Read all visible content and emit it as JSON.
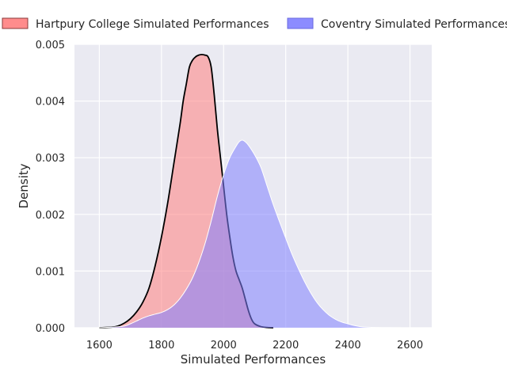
{
  "chart_data": {
    "type": "area",
    "title": "",
    "xlabel": "Simulated Performances",
    "ylabel": "Density",
    "xlim": [
      1520,
      2670
    ],
    "ylim": [
      0,
      0.005
    ],
    "x_ticks": [
      "1600",
      "1800",
      "2000",
      "2200",
      "2400",
      "2600"
    ],
    "x_tick_values": [
      1600,
      1800,
      2000,
      2200,
      2400,
      2600
    ],
    "y_ticks": [
      "0.000",
      "0.001",
      "0.002",
      "0.003",
      "0.004",
      "0.005"
    ],
    "y_tick_values": [
      0,
      0.001,
      0.002,
      0.003,
      0.004,
      0.005
    ],
    "grid": true,
    "legend_position": "top",
    "background_color": "#eaeaf2",
    "series": [
      {
        "name": "Hartpury College Simulated Performances",
        "fill_color": "#ff8080",
        "line_color": "#000000",
        "x": [
          1600,
          1640,
          1660,
          1680,
          1700,
          1720,
          1740,
          1760,
          1780,
          1800,
          1820,
          1840,
          1860,
          1870,
          1880,
          1890,
          1900,
          1910,
          1920,
          1930,
          1940,
          1950,
          1960,
          1970,
          1980,
          1990,
          2000,
          2010,
          2020,
          2030,
          2040,
          2050,
          2060,
          2070,
          2080,
          2090,
          2100,
          2120,
          2140,
          2160
        ],
        "y": [
          0,
          1e-05,
          3e-05,
          8e-05,
          0.00016,
          0.00028,
          0.00045,
          0.0007,
          0.0011,
          0.0016,
          0.0022,
          0.0029,
          0.0036,
          0.004,
          0.0043,
          0.0046,
          0.00472,
          0.00478,
          0.00481,
          0.00482,
          0.00481,
          0.00478,
          0.0046,
          0.0041,
          0.0035,
          0.003,
          0.0025,
          0.002,
          0.0016,
          0.00125,
          0.001,
          0.00085,
          0.0007,
          0.0005,
          0.0003,
          0.00015,
          7e-05,
          2e-05,
          5e-06,
          0
        ]
      },
      {
        "name": "Coventry Simulated Performances",
        "fill_color": "#8080ff",
        "line_color": "#ffffff",
        "x": [
          1570,
          1600,
          1640,
          1680,
          1700,
          1720,
          1740,
          1760,
          1780,
          1800,
          1820,
          1840,
          1860,
          1880,
          1900,
          1920,
          1940,
          1960,
          1980,
          2000,
          2020,
          2040,
          2050,
          2060,
          2070,
          2080,
          2100,
          2120,
          2140,
          2160,
          2180,
          2200,
          2220,
          2240,
          2260,
          2280,
          2300,
          2320,
          2340,
          2360,
          2380,
          2400,
          2420,
          2440,
          2460,
          2500,
          2550,
          2620
        ],
        "y": [
          0,
          2e-06,
          1e-05,
          3e-05,
          7e-05,
          0.00012,
          0.00017,
          0.00021,
          0.00024,
          0.00027,
          0.00032,
          0.0004,
          0.00052,
          0.00068,
          0.00088,
          0.00115,
          0.00148,
          0.00188,
          0.00232,
          0.0027,
          0.003,
          0.0032,
          0.00328,
          0.00331,
          0.00328,
          0.00322,
          0.00305,
          0.00283,
          0.0025,
          0.00217,
          0.00187,
          0.00158,
          0.0013,
          0.00105,
          0.00082,
          0.00062,
          0.00045,
          0.00032,
          0.00022,
          0.00015,
          0.0001,
          7e-05,
          4e-05,
          2e-05,
          1e-05,
          4e-06,
          1e-06,
          0
        ]
      }
    ]
  }
}
